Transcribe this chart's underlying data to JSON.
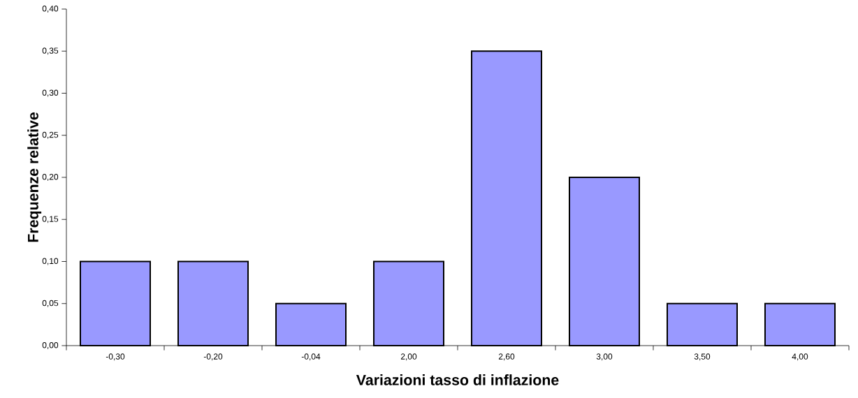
{
  "chart_data": {
    "type": "bar",
    "xlabel": "Variazioni tasso di inflazione",
    "ylabel": "Frequenze relative",
    "categories": [
      "-0,30",
      "-0,20",
      "-0,04",
      "2,00",
      "2,60",
      "3,00",
      "3,50",
      "4,00"
    ],
    "values": [
      0.1,
      0.1,
      0.05,
      0.1,
      0.35,
      0.2,
      0.05,
      0.05
    ],
    "color": "#9999ff",
    "ylim": [
      0,
      0.4
    ],
    "yticks": [
      {
        "value": 0,
        "label": "0,00"
      },
      {
        "value": 0.05,
        "label": "0,05"
      },
      {
        "value": 0.1,
        "label": "0,10"
      },
      {
        "value": 0.15,
        "label": "0,15"
      },
      {
        "value": 0.2,
        "label": "0,20"
      },
      {
        "value": 0.25,
        "label": "0,25"
      },
      {
        "value": 0.3,
        "label": "0,30"
      },
      {
        "value": 0.35,
        "label": "0,35"
      },
      {
        "value": 0.4,
        "label": "0,40"
      }
    ],
    "grid": false
  }
}
